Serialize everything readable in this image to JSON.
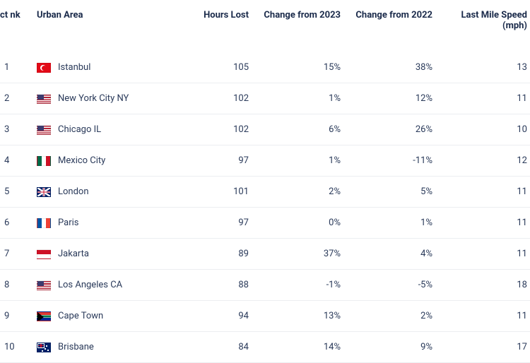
{
  "columns": {
    "rank": "ct\nnk",
    "urban": "Urban Area",
    "hours": "Hours Lost",
    "change23": "Change from 2023",
    "change22": "Change from 2022",
    "speed": "Last Mile Speed (mph)"
  },
  "rows": [
    {
      "rank": "1",
      "flag": "tr",
      "city": "Istanbul",
      "hours": "105",
      "c23": "15%",
      "c22": "38%",
      "speed": "13"
    },
    {
      "rank": "2",
      "flag": "us",
      "city": "New York City NY",
      "hours": "102",
      "c23": "1%",
      "c22": "12%",
      "speed": "11"
    },
    {
      "rank": "3",
      "flag": "us",
      "city": "Chicago IL",
      "hours": "102",
      "c23": "6%",
      "c22": "26%",
      "speed": "10"
    },
    {
      "rank": "4",
      "flag": "mx",
      "city": "Mexico City",
      "hours": "97",
      "c23": "1%",
      "c22": "-11%",
      "speed": "12"
    },
    {
      "rank": "5",
      "flag": "gb",
      "city": "London",
      "hours": "101",
      "c23": "2%",
      "c22": "5%",
      "speed": "11"
    },
    {
      "rank": "6",
      "flag": "fr",
      "city": "Paris",
      "hours": "97",
      "c23": "0%",
      "c22": "1%",
      "speed": "11"
    },
    {
      "rank": "7",
      "flag": "id",
      "city": "Jakarta",
      "hours": "89",
      "c23": "37%",
      "c22": "4%",
      "speed": "11"
    },
    {
      "rank": "8",
      "flag": "us",
      "city": "Los Angeles CA",
      "hours": "88",
      "c23": "-1%",
      "c22": "-5%",
      "speed": "18"
    },
    {
      "rank": "9",
      "flag": "za",
      "city": "Cape Town",
      "hours": "94",
      "c23": "13%",
      "c22": "2%",
      "speed": "11"
    },
    {
      "rank": "10",
      "flag": "au",
      "city": "Brisbane",
      "hours": "84",
      "c23": "14%",
      "c22": "9%",
      "speed": "17"
    }
  ],
  "styling": {
    "header_font_size": 13,
    "header_font_weight": 700,
    "body_font_size": 13,
    "text_color": "#1a2a4a",
    "body_text_color": "#2a3a5a",
    "row_border_color": "#eceef1",
    "background": "#ffffff"
  }
}
